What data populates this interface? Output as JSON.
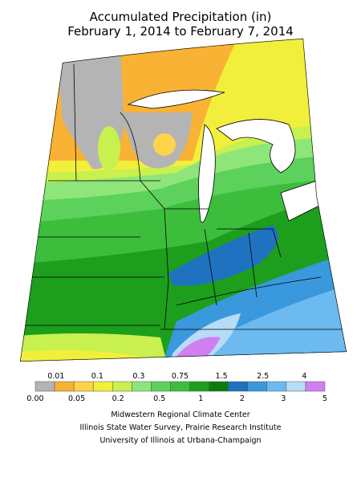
{
  "title": {
    "line1": "Accumulated Precipitation (in)",
    "line2": "February 1, 2014 to February 7, 2014"
  },
  "legend": {
    "colors": [
      "#b4b4b4",
      "#f9b233",
      "#fdd34a",
      "#f2ef3c",
      "#c8f04e",
      "#8ee57a",
      "#5cd15c",
      "#3cbe3c",
      "#1d9e1d",
      "#0b7d0b",
      "#1f72c0",
      "#3a98dc",
      "#6cbaf0",
      "#b7dcf7",
      "#d17ff0"
    ],
    "labels_top": [
      "0.01",
      "0.1",
      "0.3",
      "0.75",
      "1.5",
      "2.5",
      "4"
    ],
    "labels_bottom": [
      "0.00",
      "0.05",
      "0.2",
      "0.5",
      "1",
      "2",
      "3",
      "5"
    ]
  },
  "credits": [
    "Midwestern Regional Climate Center",
    "Illinois State Water Survey, Prairie Research Institute",
    "University of Illinois at Urbana-Champaign"
  ]
}
